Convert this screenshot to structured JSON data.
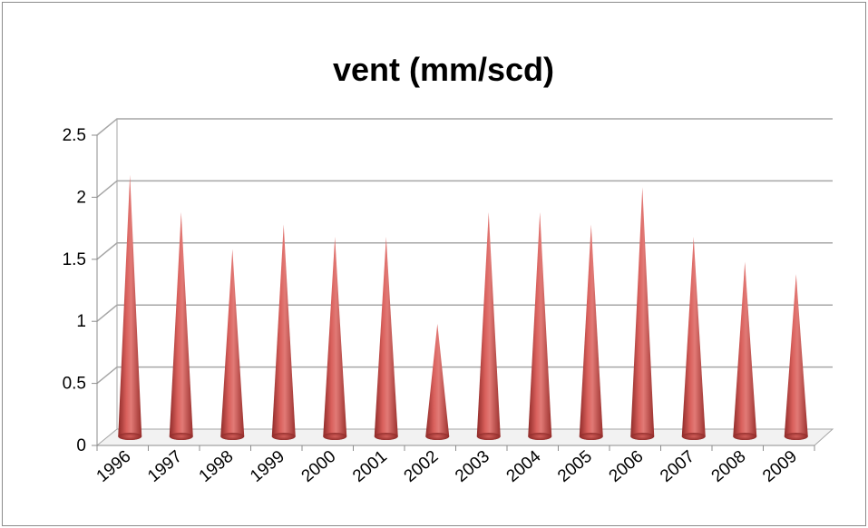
{
  "chart_data": {
    "type": "bar",
    "title": "vent (mm/scd)",
    "categories": [
      "1996",
      "1997",
      "1998",
      "1999",
      "2000",
      "2001",
      "2002",
      "2003",
      "2004",
      "2005",
      "2006",
      "2007",
      "2008",
      "2009"
    ],
    "values": [
      2.1,
      1.8,
      1.5,
      1.7,
      1.6,
      1.6,
      0.9,
      1.8,
      1.8,
      1.7,
      2.0,
      1.6,
      1.4,
      1.3
    ],
    "yticks": [
      "0",
      "0.5",
      "1",
      "1.5",
      "2",
      "2.5"
    ],
    "ylim": [
      0,
      2.5
    ],
    "bar_shape": "cone",
    "bar_color": "#c0504d",
    "grid": true,
    "legend": "none"
  }
}
